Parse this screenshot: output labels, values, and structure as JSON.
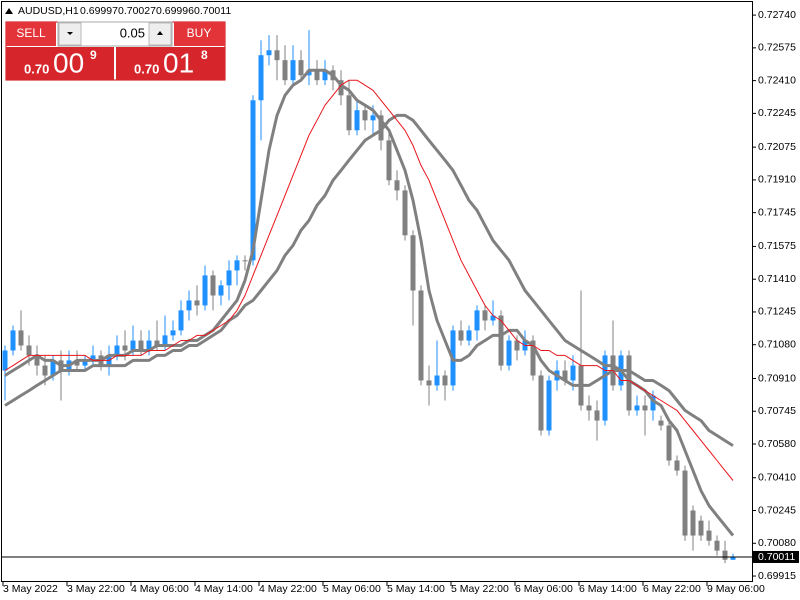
{
  "symbol": "AUDUSD,H1",
  "trade_panel": {
    "sell_label": "SELL",
    "buy_label": "BUY",
    "lot": "0.05",
    "sell_price": {
      "prefix": "0.70",
      "big": "00",
      "small": "9"
    },
    "buy_price": {
      "prefix": "0.70",
      "big": "01",
      "small": "8"
    }
  },
  "chart_data": {
    "type": "candlestick",
    "up_color": "#1e90ff",
    "down_color": "#808080",
    "categories": [
      "3 May 2022",
      null,
      null,
      null,
      null,
      null,
      null,
      null,
      "3 May 22:00",
      null,
      null,
      null,
      null,
      null,
      null,
      null,
      "4 May 06:00",
      null,
      null,
      null,
      null,
      null,
      null,
      null,
      "4 May 14:00",
      null,
      null,
      null,
      null,
      null,
      null,
      null,
      "4 May 22:00",
      null,
      null,
      null,
      null,
      null,
      null,
      null,
      "5 May 06:00",
      null,
      null,
      null,
      null,
      null,
      null,
      null,
      "5 May 14:00",
      null,
      null,
      null,
      null,
      null,
      null,
      null,
      "5 May 22:00",
      null,
      null,
      null,
      null,
      null,
      null,
      null,
      "6 May 06:00",
      null,
      null,
      null,
      null,
      null,
      null,
      null,
      "6 May 14:00",
      null,
      null,
      null,
      null,
      null,
      null,
      null,
      "6 May 22:00",
      null,
      null,
      null,
      null,
      null,
      null,
      null,
      "9 May 06:00",
      null,
      null,
      null
    ],
    "open": [
      0.7095,
      0.71051,
      0.71152,
      0.71076,
      0.71026,
      0.70975,
      0.70925,
      0.71001,
      0.7095,
      0.71001,
      0.70975,
      0.71001,
      0.71026,
      0.70975,
      0.71026,
      0.71076,
      0.71051,
      0.71101,
      0.71051,
      0.71101,
      0.71076,
      0.71127,
      0.71152,
      0.71253,
      0.71303,
      0.71278,
      0.71429,
      0.71328,
      0.71379,
      0.71454,
      0.71505,
      0.71505,
      0.72311,
      0.72538,
      0.72563,
      0.72513,
      0.72412,
      0.72513,
      0.72437,
      0.72462,
      0.72412,
      0.72462,
      0.72412,
      0.72336,
      0.7216,
      0.72261,
      0.7221,
      0.72235,
      0.72109,
      0.71908,
      0.71857,
      0.71631,
      0.71353,
      0.709,
      0.70875,
      0.70925,
      0.70875,
      0.71152,
      0.71101,
      0.71152,
      0.71253,
      0.71202,
      0.71227,
      0.70975,
      0.71101,
      0.71051,
      0.71101,
      0.70925,
      0.70648,
      0.709,
      0.7095,
      0.709,
      0.70975,
      0.70774,
      0.70749,
      0.70698,
      0.71026,
      0.70875,
      0.71026,
      0.70749,
      0.70774,
      0.70749,
      0.70698,
      0.70673,
      0.70497,
      0.70446,
      0.70245,
      0.70194,
      0.70144,
      0.70093,
      0.70043,
      0.69997
    ],
    "high": [
      0.71076,
      0.71177,
      0.71253,
      0.71127,
      0.71076,
      0.71026,
      0.71026,
      0.71051,
      0.71051,
      0.71051,
      0.71026,
      0.71076,
      0.71051,
      0.71076,
      0.71127,
      0.71152,
      0.71177,
      0.71152,
      0.71152,
      0.71202,
      0.71227,
      0.71202,
      0.71303,
      0.71353,
      0.71379,
      0.71479,
      0.71454,
      0.71404,
      0.71505,
      0.7153,
      0.7153,
      0.72336,
      0.72613,
      0.72639,
      0.72639,
      0.72588,
      0.72588,
      0.72563,
      0.72664,
      0.72513,
      0.72513,
      0.72487,
      0.72462,
      0.72412,
      0.72311,
      0.72286,
      0.72286,
      0.72261,
      0.7216,
      0.71958,
      0.71883,
      0.71656,
      0.71379,
      0.70975,
      0.71101,
      0.7095,
      0.71177,
      0.71202,
      0.71177,
      0.71278,
      0.71278,
      0.71303,
      0.71253,
      0.71127,
      0.71127,
      0.71152,
      0.71127,
      0.7095,
      0.70925,
      0.71001,
      0.71001,
      0.71026,
      0.71353,
      0.70824,
      0.70799,
      0.71051,
      0.71202,
      0.71051,
      0.71051,
      0.70824,
      0.70824,
      0.70849,
      0.70723,
      0.70698,
      0.70522,
      0.70471,
      0.7027,
      0.70219,
      0.70194,
      0.70119,
      0.70093,
      0.70027
    ],
    "low": [
      0.70799,
      0.71026,
      0.71051,
      0.70975,
      0.70925,
      0.70875,
      0.709,
      0.70799,
      0.70925,
      0.7095,
      0.7095,
      0.70975,
      0.7095,
      0.70925,
      0.71001,
      0.71001,
      0.71026,
      0.71026,
      0.71026,
      0.71051,
      0.71051,
      0.71101,
      0.71127,
      0.71202,
      0.71227,
      0.71253,
      0.71253,
      0.71278,
      0.71303,
      0.71379,
      0.71454,
      0.71479,
      0.72109,
      0.72487,
      0.72412,
      0.72387,
      0.72387,
      0.72412,
      0.72387,
      0.72387,
      0.72387,
      0.72361,
      0.72286,
      0.72135,
      0.72135,
      0.7216,
      0.72135,
      0.72059,
      0.71883,
      0.71807,
      0.71605,
      0.71177,
      0.70875,
      0.70774,
      0.70849,
      0.70799,
      0.70849,
      0.71076,
      0.71076,
      0.71101,
      0.71152,
      0.71177,
      0.7095,
      0.7095,
      0.71001,
      0.71026,
      0.709,
      0.70623,
      0.70623,
      0.70849,
      0.70875,
      0.70849,
      0.70749,
      0.70698,
      0.70597,
      0.70673,
      0.70849,
      0.70849,
      0.70723,
      0.70723,
      0.70623,
      0.70698,
      0.70648,
      0.70471,
      0.70421,
      0.70093,
      0.70043,
      0.70093,
      0.70068,
      0.70018,
      0.6998,
      0.69996
    ],
    "close": [
      0.71051,
      0.71152,
      0.71076,
      0.71026,
      0.70975,
      0.70925,
      0.71001,
      0.7095,
      0.71001,
      0.70975,
      0.71001,
      0.71026,
      0.70975,
      0.71026,
      0.71076,
      0.71051,
      0.71101,
      0.71051,
      0.71101,
      0.71076,
      0.71127,
      0.71152,
      0.71253,
      0.71303,
      0.71278,
      0.71429,
      0.71328,
      0.71379,
      0.71454,
      0.71505,
      0.71505,
      0.72311,
      0.72538,
      0.72563,
      0.72513,
      0.72412,
      0.72513,
      0.72437,
      0.72462,
      0.72412,
      0.72462,
      0.72412,
      0.72336,
      0.7216,
      0.72261,
      0.7221,
      0.72235,
      0.72109,
      0.71908,
      0.71857,
      0.71631,
      0.71353,
      0.709,
      0.70875,
      0.70925,
      0.70875,
      0.71152,
      0.71101,
      0.71152,
      0.71253,
      0.71202,
      0.71227,
      0.70975,
      0.71101,
      0.71051,
      0.71101,
      0.70925,
      0.70648,
      0.709,
      0.7095,
      0.709,
      0.70975,
      0.70774,
      0.70749,
      0.70698,
      0.71026,
      0.70875,
      0.71026,
      0.70749,
      0.70774,
      0.70749,
      0.70824,
      0.70673,
      0.70497,
      0.70446,
      0.70119,
      0.70119,
      0.70119,
      0.70093,
      0.70043,
      0.69997,
      0.70011
    ],
    "indicators": [
      {
        "color": "#808080",
        "line_width": 3,
        "values": [
          0.70925,
          0.7095,
          0.70975,
          0.71001,
          0.71026,
          0.71001,
          0.71001,
          0.70975,
          0.70975,
          0.71001,
          0.71001,
          0.71001,
          0.71001,
          0.71026,
          0.71026,
          0.71026,
          0.71051,
          0.71051,
          0.71051,
          0.71076,
          0.71076,
          0.71076,
          0.71076,
          0.71101,
          0.71101,
          0.71127,
          0.71152,
          0.71202,
          0.71253,
          0.71303,
          0.71404,
          0.71555,
          0.71807,
          0.72059,
          0.72235,
          0.72336,
          0.72387,
          0.72412,
          0.72462,
          0.72462,
          0.72462,
          0.72437,
          0.72387,
          0.72361,
          0.72311,
          0.72286,
          0.72261,
          0.7221,
          0.7216,
          0.72059,
          0.71958,
          0.71807,
          0.71605,
          0.71353,
          0.71202,
          0.71101,
          0.71001,
          0.71001,
          0.71026,
          0.71076,
          0.71101,
          0.71127,
          0.71127,
          0.71152,
          0.71152,
          0.71101,
          0.71076,
          0.71001,
          0.7095,
          0.70925,
          0.709,
          0.70875,
          0.70875,
          0.70875,
          0.709,
          0.70925,
          0.7095,
          0.7095,
          0.709,
          0.70875,
          0.70849,
          0.70799,
          0.70774,
          0.70698,
          0.70648,
          0.70547,
          0.70446,
          0.70345,
          0.7027,
          0.70219,
          0.70169,
          0.70119
        ]
      },
      {
        "color": "#808080",
        "line_width": 3,
        "values": [
          0.70774,
          0.70799,
          0.70824,
          0.70849,
          0.70875,
          0.709,
          0.70925,
          0.7095,
          0.7095,
          0.7095,
          0.7095,
          0.70975,
          0.70975,
          0.70975,
          0.70975,
          0.70975,
          0.71001,
          0.71001,
          0.71001,
          0.71026,
          0.71026,
          0.71051,
          0.71051,
          0.71076,
          0.71076,
          0.71101,
          0.71127,
          0.71152,
          0.71202,
          0.71227,
          0.71278,
          0.71303,
          0.71353,
          0.71404,
          0.71454,
          0.7153,
          0.7158,
          0.71656,
          0.71706,
          0.71782,
          0.71832,
          0.71908,
          0.71958,
          0.72009,
          0.72059,
          0.72109,
          0.72135,
          0.7216,
          0.7221,
          0.72235,
          0.72235,
          0.7221,
          0.7216,
          0.72109,
          0.72059,
          0.72009,
          0.71958,
          0.71883,
          0.71807,
          0.71757,
          0.71681,
          0.71605,
          0.71555,
          0.71505,
          0.71429,
          0.71353,
          0.71303,
          0.71253,
          0.71202,
          0.71152,
          0.71101,
          0.71076,
          0.71051,
          0.71026,
          0.71001,
          0.70975,
          0.70975,
          0.7095,
          0.7095,
          0.70925,
          0.709,
          0.709,
          0.70875,
          0.70849,
          0.70799,
          0.70749,
          0.70723,
          0.70698,
          0.70648,
          0.70623,
          0.70597,
          0.70572
        ]
      },
      {
        "color": "#e8141b",
        "line_width": 1,
        "values": [
          0.7095,
          0.70975,
          0.71001,
          0.71026,
          0.71026,
          0.71026,
          0.71026,
          0.71026,
          0.71026,
          0.71026,
          0.71026,
          0.71001,
          0.71001,
          0.71001,
          0.71026,
          0.71026,
          0.71026,
          0.71026,
          0.71051,
          0.71051,
          0.71051,
          0.71076,
          0.71101,
          0.71101,
          0.71127,
          0.71127,
          0.71152,
          0.71177,
          0.71202,
          0.71253,
          0.71328,
          0.71429,
          0.7153,
          0.71631,
          0.71731,
          0.71832,
          0.71933,
          0.72034,
          0.72135,
          0.7221,
          0.72286,
          0.72336,
          0.72387,
          0.72412,
          0.72412,
          0.72387,
          0.72361,
          0.72311,
          0.72261,
          0.7221,
          0.7216,
          0.72084,
          0.71983,
          0.71908,
          0.71807,
          0.71706,
          0.71605,
          0.71505,
          0.71429,
          0.71353,
          0.71278,
          0.71227,
          0.71202,
          0.71152,
          0.71101,
          0.71076,
          0.71076,
          0.71051,
          0.71051,
          0.71026,
          0.71026,
          0.71001,
          0.70975,
          0.70975,
          0.70975,
          0.7095,
          0.7095,
          0.709,
          0.709,
          0.70875,
          0.70849,
          0.70824,
          0.70799,
          0.70774,
          0.70749,
          0.70698,
          0.70648,
          0.70597,
          0.70547,
          0.70497,
          0.70446,
          0.70396
        ]
      }
    ],
    "ylim": [
      0.69885,
      0.72816
    ],
    "yticks": [
      {
        "value": 0.7274,
        "label": "0.72740"
      },
      0.72575,
      {
        "value": 0.7241,
        "label": "0.72410"
      },
      0.72245,
      0.72075,
      {
        "value": 0.7191,
        "label": "0.71910"
      },
      0.71745,
      0.71575,
      {
        "value": 0.7141,
        "label": "0.71410"
      },
      0.71245,
      {
        "value": 0.7108,
        "label": "0.71080"
      },
      {
        "value": 0.7091,
        "label": "0.70910"
      },
      0.70745,
      {
        "value": 0.7058,
        "label": "0.70580"
      },
      {
        "value": 0.7041,
        "label": "0.70410"
      },
      0.70245,
      {
        "value": 0.7008,
        "label": "0.70080"
      },
      0.69915
    ],
    "grid": false
  }
}
